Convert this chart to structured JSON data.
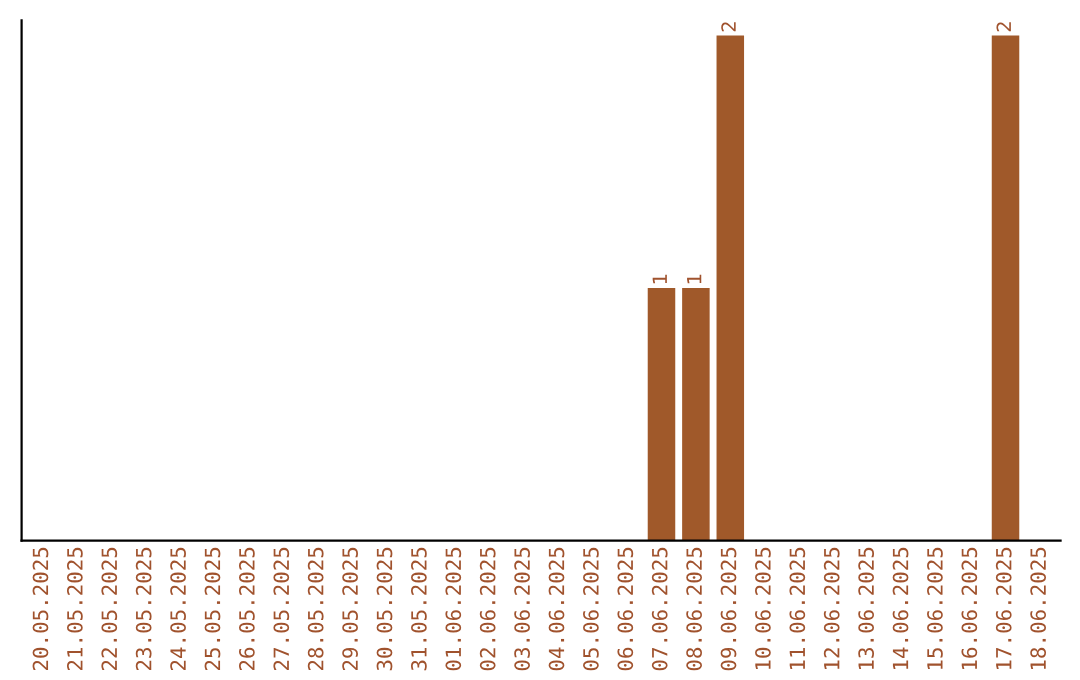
{
  "chart_data": {
    "type": "bar",
    "categories": [
      "20.05.2025",
      "21.05.2025",
      "22.05.2025",
      "23.05.2025",
      "24.05.2025",
      "25.05.2025",
      "26.05.2025",
      "27.05.2025",
      "28.05.2025",
      "29.05.2025",
      "30.05.2025",
      "31.05.2025",
      "01.06.2025",
      "02.06.2025",
      "03.06.2025",
      "04.06.2025",
      "05.06.2025",
      "06.06.2025",
      "07.06.2025",
      "08.06.2025",
      "09.06.2025",
      "10.06.2025",
      "11.06.2025",
      "12.06.2025",
      "13.06.2025",
      "14.06.2025",
      "15.06.2025",
      "16.06.2025",
      "17.06.2025",
      "18.06.2025"
    ],
    "values": [
      null,
      null,
      null,
      null,
      null,
      null,
      null,
      null,
      null,
      null,
      null,
      null,
      null,
      null,
      null,
      null,
      null,
      null,
      1,
      1,
      2,
      null,
      null,
      null,
      null,
      null,
      null,
      null,
      2,
      null
    ],
    "data_labels": true,
    "color": "#a0592a",
    "tick_labels": "x",
    "grid": false,
    "legend": false
  }
}
